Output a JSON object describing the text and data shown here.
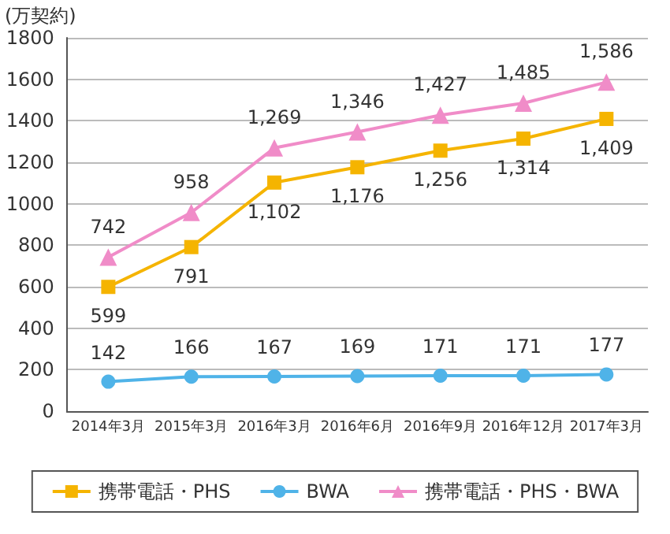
{
  "chart_data": {
    "type": "line",
    "ylabel": "(万契約)",
    "categories": [
      "2014年3月",
      "2015年3月",
      "2016年3月",
      "2016年6月",
      "2016年9月",
      "2016年12月",
      "2017年3月"
    ],
    "series": [
      {
        "name": "携帯電話・PHS",
        "color": "#f5b400",
        "marker": "square",
        "values": [
          599,
          791,
          1102,
          1176,
          1256,
          1314,
          1409
        ],
        "value_labels": [
          "599",
          "791",
          "1,102",
          "1,176",
          "1,256",
          "1,314",
          "1,409"
        ]
      },
      {
        "name": "BWA",
        "color": "#4fb3e8",
        "marker": "circle",
        "values": [
          142,
          166,
          167,
          169,
          171,
          171,
          177
        ],
        "value_labels": [
          "142",
          "166",
          "167",
          "169",
          "171",
          "171",
          "177"
        ]
      },
      {
        "name": "携帯電話・PHS・BWA",
        "color": "#f08cc8",
        "marker": "triangle",
        "values": [
          742,
          958,
          1269,
          1346,
          1427,
          1485,
          1586
        ],
        "value_labels": [
          "742",
          "958",
          "1,269",
          "1,346",
          "1,427",
          "1,485",
          "1,586"
        ]
      }
    ],
    "ylim": [
      0,
      1800
    ],
    "yticks": [
      0,
      200,
      400,
      600,
      800,
      1000,
      1200,
      1400,
      1600,
      1800
    ],
    "grid": "y",
    "legend": "bottom",
    "line_style": "solid"
  }
}
